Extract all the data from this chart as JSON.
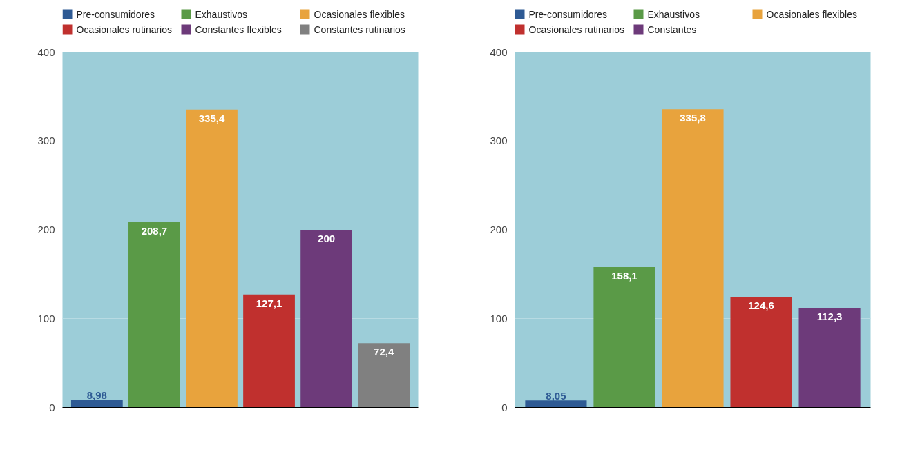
{
  "chart_data": [
    {
      "type": "bar",
      "categories": [
        null
      ],
      "ylim": [
        0,
        400
      ],
      "yticks": [
        0,
        100,
        200,
        300,
        400
      ],
      "grid": "y",
      "legend": "top",
      "series": [
        {
          "name": "Pre-consumidores",
          "color": "#2e5a94",
          "values": [
            8.98
          ],
          "value_labels": [
            "8,98"
          ]
        },
        {
          "name": "Exhaustivos",
          "color": "#5a9a47",
          "values": [
            208.7
          ],
          "value_labels": [
            "208,7"
          ]
        },
        {
          "name": "Ocasionales flexibles",
          "color": "#e8a33d",
          "values": [
            335.4
          ],
          "value_labels": [
            "335,4"
          ]
        },
        {
          "name": "Ocasionales rutinarios",
          "color": "#c0302e",
          "values": [
            127.1
          ],
          "value_labels": [
            "127,1"
          ]
        },
        {
          "name": "Constantes flexibles",
          "color": "#6d3a7a",
          "values": [
            200
          ],
          "value_labels": [
            "200"
          ]
        },
        {
          "name": "Constantes rutinarios",
          "color": "#808080",
          "values": [
            72.4
          ],
          "value_labels": [
            "72,4"
          ]
        }
      ]
    },
    {
      "type": "bar",
      "categories": [
        null
      ],
      "ylim": [
        0,
        400
      ],
      "yticks": [
        0,
        100,
        200,
        300,
        400
      ],
      "grid": "y",
      "legend": "top",
      "series": [
        {
          "name": "Pre-consumidores",
          "color": "#2e5a94",
          "values": [
            8.05
          ],
          "value_labels": [
            "8,05"
          ]
        },
        {
          "name": "Exhaustivos",
          "color": "#5a9a47",
          "values": [
            158.1
          ],
          "value_labels": [
            "158,1"
          ]
        },
        {
          "name": "Ocasionales flexibles",
          "color": "#e8a33d",
          "values": [
            335.8
          ],
          "value_labels": [
            "335,8"
          ]
        },
        {
          "name": "Ocasionales rutinarios",
          "color": "#c0302e",
          "values": [
            124.6
          ],
          "value_labels": [
            "124,6"
          ]
        },
        {
          "name": "Constantes",
          "color": "#6d3a7a",
          "values": [
            112.3
          ],
          "value_labels": [
            "112,3"
          ]
        }
      ]
    }
  ]
}
